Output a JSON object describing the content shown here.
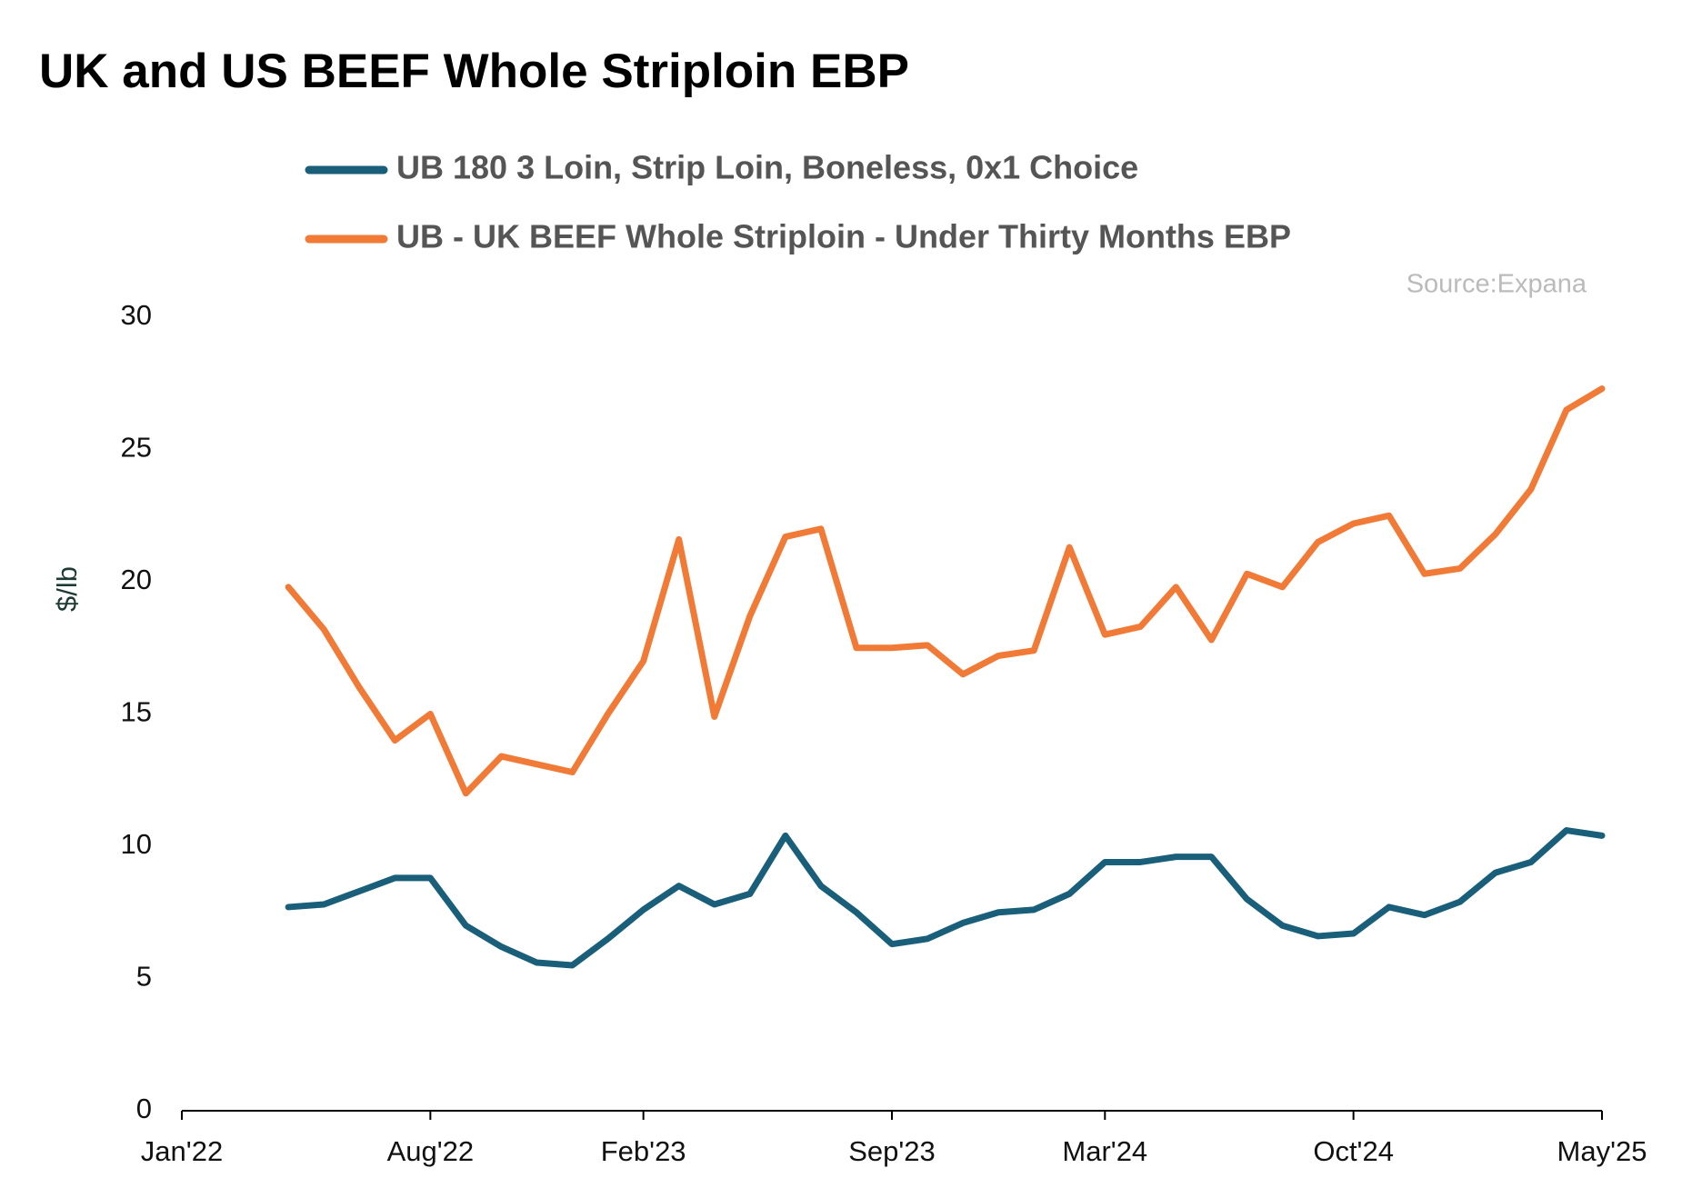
{
  "chart_data": {
    "type": "line",
    "title": "UK and US BEEF Whole Striploin EBP",
    "source": "Source:Expana",
    "ylabel": "$/lb",
    "x": [
      "2022-04",
      "2022-05",
      "2022-06",
      "2022-07",
      "2022-08",
      "2022-09",
      "2022-10",
      "2022-11",
      "2022-12",
      "2023-01",
      "2023-02",
      "2023-03",
      "2023-04",
      "2023-05",
      "2023-06",
      "2023-07",
      "2023-08",
      "2023-09",
      "2023-10",
      "2023-11",
      "2023-12",
      "2024-01",
      "2024-02",
      "2024-03",
      "2024-04",
      "2024-05",
      "2024-06",
      "2024-07",
      "2024-08",
      "2024-09",
      "2024-10",
      "2024-11",
      "2024-12",
      "2025-01",
      "2025-02",
      "2025-03",
      "2025-04",
      "2025-05"
    ],
    "series": [
      {
        "name": "UB 180 3 Loin, Strip Loin, Boneless, 0x1 Choice",
        "color": "#1a5f7a",
        "values": [
          7.7,
          7.8,
          8.3,
          8.8,
          8.8,
          7.0,
          6.2,
          5.6,
          5.5,
          6.5,
          7.6,
          8.5,
          7.8,
          8.2,
          10.4,
          8.5,
          7.5,
          6.3,
          6.5,
          7.1,
          7.5,
          7.6,
          8.2,
          9.4,
          9.4,
          9.6,
          9.6,
          8.0,
          7.0,
          6.6,
          6.7,
          7.7,
          7.4,
          7.9,
          9.0,
          9.4,
          10.6,
          10.4
        ]
      },
      {
        "name": "UB - UK BEEF Whole Striploin - Under Thirty Months EBP",
        "color": "#f07a36",
        "values": [
          19.8,
          18.2,
          16.0,
          14.0,
          15.0,
          12.0,
          13.4,
          13.1,
          12.8,
          15.0,
          17.0,
          21.6,
          14.9,
          18.7,
          21.7,
          22.0,
          17.5,
          17.5,
          17.6,
          16.5,
          17.2,
          17.4,
          21.3,
          18.0,
          18.3,
          19.8,
          17.8,
          20.3,
          19.8,
          21.5,
          22.2,
          22.5,
          20.3,
          20.5,
          21.8,
          23.5,
          26.5,
          27.3
        ]
      }
    ],
    "xlim": [
      "2022-01",
      "2025-05"
    ],
    "xticks": [
      {
        "value": "2022-01",
        "label": "Jan'22"
      },
      {
        "value": "2022-08",
        "label": "Aug'22"
      },
      {
        "value": "2023-02",
        "label": "Feb'23"
      },
      {
        "value": "2023-09",
        "label": "Sep'23"
      },
      {
        "value": "2024-03",
        "label": "Mar'24"
      },
      {
        "value": "2024-10",
        "label": "Oct'24"
      },
      {
        "value": "2025-05",
        "label": "May'25"
      }
    ],
    "ylim": [
      0,
      30
    ],
    "yticks": [
      0,
      5,
      10,
      15,
      20,
      25,
      30
    ],
    "grid": false
  }
}
